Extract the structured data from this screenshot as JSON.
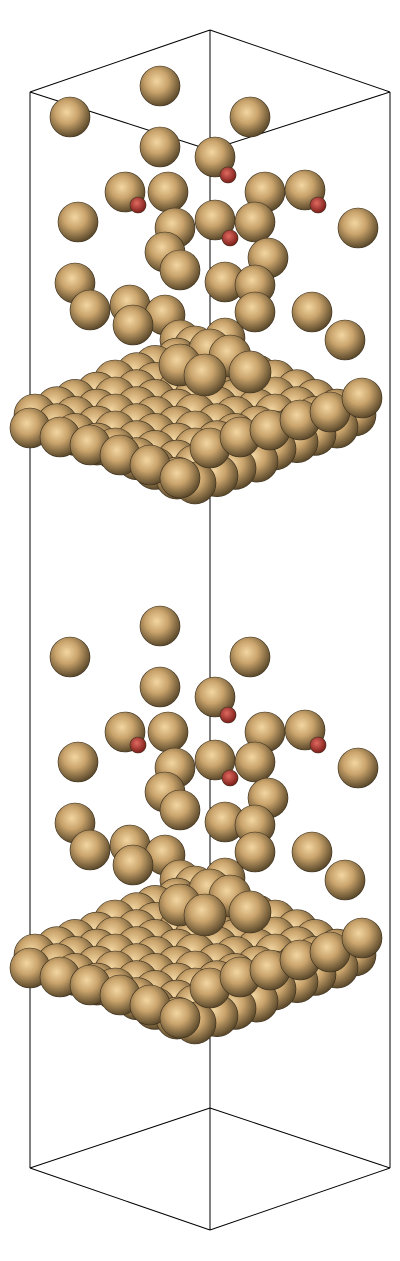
{
  "scene": {
    "colors": {
      "background": "#ffffff",
      "frame_line": "#000000",
      "atom_primary": "#c9a46e",
      "atom_secondary": "#c0302c",
      "atom_shadow": "#4a3a22"
    },
    "description_free": true
  }
}
